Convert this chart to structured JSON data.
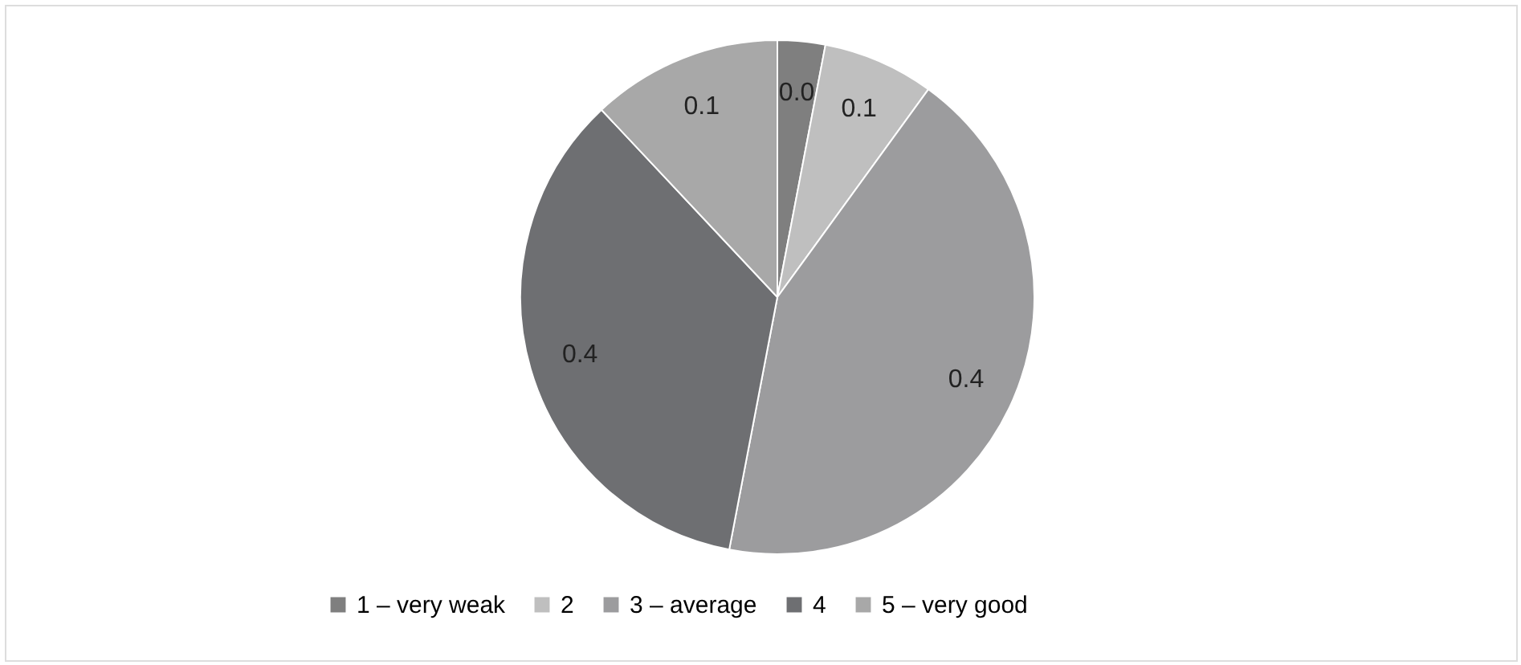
{
  "chart_data": {
    "type": "pie",
    "categories": [
      "1 – very weak",
      "2",
      "3 – average",
      "4",
      "5 – very good"
    ],
    "values": [
      0.03,
      0.07,
      0.43,
      0.35,
      0.12
    ],
    "value_labels": [
      "0.0",
      "0.1",
      "0.4",
      "0.4",
      "0.1"
    ],
    "colors": [
      "#7f7f7f",
      "#bfbfbf",
      "#9c9c9e",
      "#6e6f72",
      "#a8a8a8"
    ],
    "legend": "bottom"
  }
}
